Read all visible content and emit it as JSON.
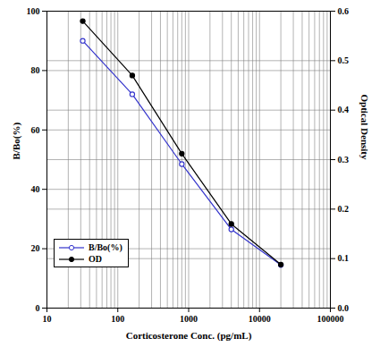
{
  "chart_data": {
    "type": "line",
    "x_label": "Corticosterone Conc. (pg/mL)",
    "y_label": "B/Bo(%)",
    "y2_label": "Optical Density",
    "x": [
      32,
      160,
      800,
      4000,
      20000
    ],
    "series": [
      {
        "name": "B/Bo(%)",
        "color": "#3333cc",
        "marker": "open circle",
        "values": [
          90,
          72,
          48.5,
          26.5,
          14.5
        ]
      },
      {
        "name": "OD",
        "color": "#000000",
        "marker": "circle",
        "axis": "y2",
        "values": [
          0.58,
          0.47,
          0.312,
          0.17,
          0.088
        ]
      }
    ],
    "log": "x",
    "xlim": [
      10,
      100000
    ],
    "xticks": [
      10,
      100,
      1000,
      10000,
      100000
    ],
    "ylim": [
      0,
      100
    ],
    "yticks": [
      0,
      20,
      40,
      60,
      80,
      100
    ],
    "y2lim": [
      0,
      0.6
    ],
    "y2ticks": [
      {
        "value": 0,
        "label": "0.0"
      },
      0.1,
      0.2,
      0.3,
      0.4,
      0.5,
      0.6
    ],
    "grid": true,
    "legend": "lower left"
  }
}
